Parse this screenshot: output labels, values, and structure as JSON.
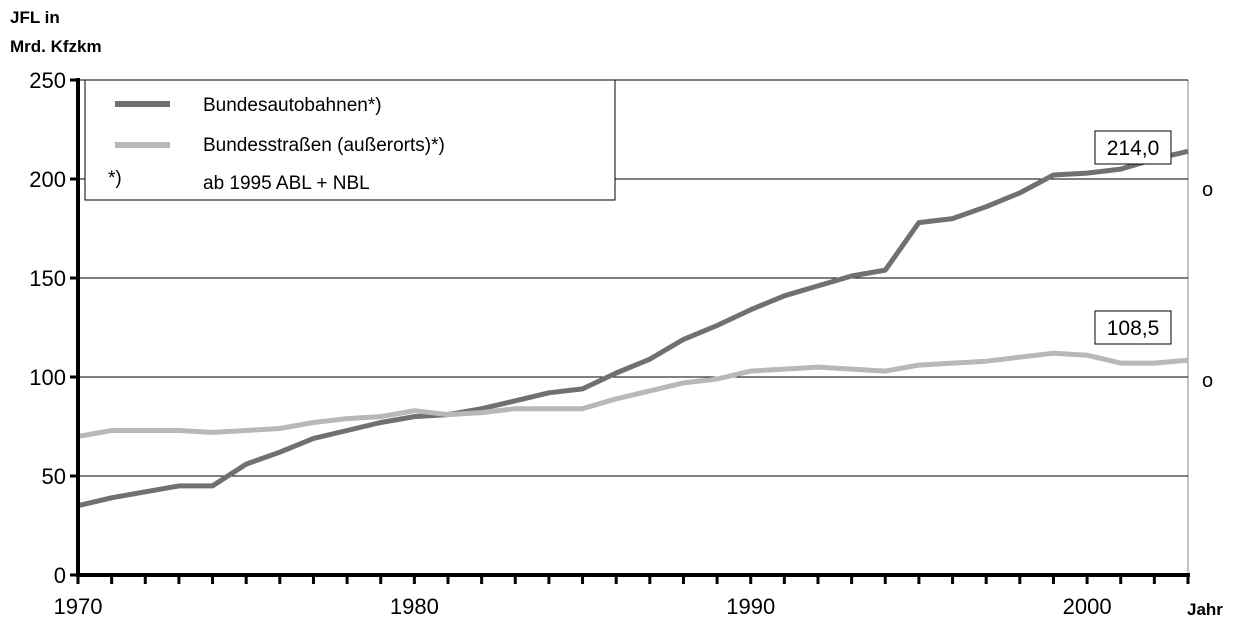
{
  "chart_data": {
    "type": "line",
    "ylabel_lines": [
      "JFL in",
      "Mrd. Kfzkm"
    ],
    "xlabel": "Jahr",
    "ylim": [
      0,
      250
    ],
    "xlim": [
      1970,
      2003
    ],
    "y_ticks": [
      0,
      50,
      100,
      150,
      200,
      250
    ],
    "y_tick_labels": [
      "0",
      "50",
      "100",
      "150",
      "200",
      "250"
    ],
    "x_tick_labels_at": [
      1970,
      1980,
      1990,
      2000
    ],
    "x_tick_labels": [
      "1970",
      "1980",
      "1990",
      "2000"
    ],
    "grid": "horizontal",
    "legend_position": "top-left",
    "legend_note_marker": "*)",
    "legend_note_text": "ab 1995 ABL + NBL",
    "x": [
      1970,
      1971,
      1972,
      1973,
      1974,
      1975,
      1976,
      1977,
      1978,
      1979,
      1980,
      1981,
      1982,
      1983,
      1984,
      1985,
      1986,
      1987,
      1988,
      1989,
      1990,
      1991,
      1992,
      1993,
      1994,
      1995,
      1996,
      1997,
      1998,
      1999,
      2000,
      2001,
      2002,
      2003
    ],
    "series": [
      {
        "name": "Bundesautobahnen*)",
        "color": "#707070",
        "values": [
          35,
          39,
          42,
          45,
          45,
          56,
          62,
          69,
          73,
          77,
          80,
          81,
          84,
          88,
          92,
          94,
          102,
          109,
          119,
          126,
          134,
          141,
          146,
          151,
          154,
          178,
          180,
          186,
          193,
          202,
          203,
          205,
          210,
          214
        ]
      },
      {
        "name": "Bundesstraßen (außerorts)*)",
        "color": "#b8b8b8",
        "values": [
          70,
          73,
          73,
          73,
          72,
          73,
          74,
          77,
          79,
          80,
          83,
          81,
          82,
          84,
          84,
          84,
          89,
          93,
          97,
          99,
          103,
          104,
          105,
          104,
          103,
          106,
          107,
          108,
          110,
          112,
          111,
          107,
          107,
          108.5
        ]
      }
    ],
    "annotations": [
      {
        "text": "214,0",
        "series": 0
      },
      {
        "text": "108,5",
        "series": 1
      }
    ],
    "end_markers": [
      "o",
      "o"
    ]
  }
}
